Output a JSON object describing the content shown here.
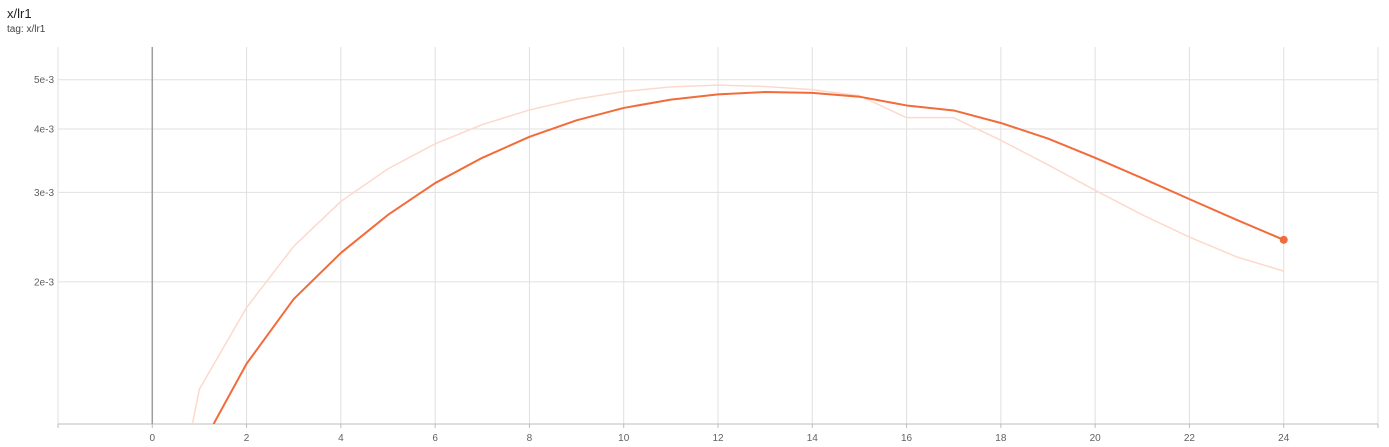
{
  "header": {
    "title": "x/lr1",
    "subtitle": "tag: x/lr1"
  },
  "chart_data": {
    "type": "line",
    "title": "x/lr1",
    "xlabel": "",
    "ylabel": "",
    "y_scale": "log",
    "xlim": [
      -2,
      26
    ],
    "ylim": [
      0.00105,
      0.0058
    ],
    "x_ticks": [
      0,
      2,
      4,
      6,
      8,
      10,
      12,
      14,
      16,
      18,
      20,
      22,
      24
    ],
    "x_tick_labels": [
      "0",
      "2",
      "4",
      "6",
      "8",
      "10",
      "12",
      "14",
      "16",
      "18",
      "20",
      "22",
      "24"
    ],
    "y_ticks": [
      0.002,
      0.003,
      0.004,
      0.005
    ],
    "y_tick_labels": [
      "2e-3",
      "3e-3",
      "4e-3",
      "5e-3"
    ],
    "grid": true,
    "series": [
      {
        "role": "raw",
        "color": "#fdd9cc",
        "x": [
          0.85,
          1,
          2,
          3,
          4,
          5,
          6,
          7,
          8,
          9,
          10,
          11,
          12,
          13,
          14,
          15,
          16,
          17,
          18,
          19,
          20,
          21,
          22,
          23,
          24
        ],
        "y": [
          0.00105,
          0.00123,
          0.00178,
          0.00235,
          0.00288,
          0.00334,
          0.00374,
          0.00408,
          0.00436,
          0.00458,
          0.00474,
          0.00484,
          0.00488,
          0.00485,
          0.00478,
          0.00465,
          0.00421,
          0.00421,
          0.0038,
          0.0034,
          0.00303,
          0.00271,
          0.00245,
          0.00224,
          0.0021
        ]
      },
      {
        "role": "smoothed",
        "color": "#f26b3a",
        "x": [
          1.3,
          2,
          3,
          4,
          5,
          6,
          7,
          8,
          9,
          10,
          11,
          12,
          13,
          14,
          15,
          16,
          17,
          18,
          19,
          20,
          21,
          22,
          23,
          24
        ],
        "y": [
          0.00105,
          0.00138,
          0.00185,
          0.00228,
          0.00271,
          0.00313,
          0.00351,
          0.00386,
          0.00416,
          0.0044,
          0.00457,
          0.00468,
          0.00473,
          0.00471,
          0.00463,
          0.00445,
          0.00435,
          0.00411,
          0.00383,
          0.00351,
          0.0032,
          0.00291,
          0.00265,
          0.00242
        ]
      }
    ]
  }
}
